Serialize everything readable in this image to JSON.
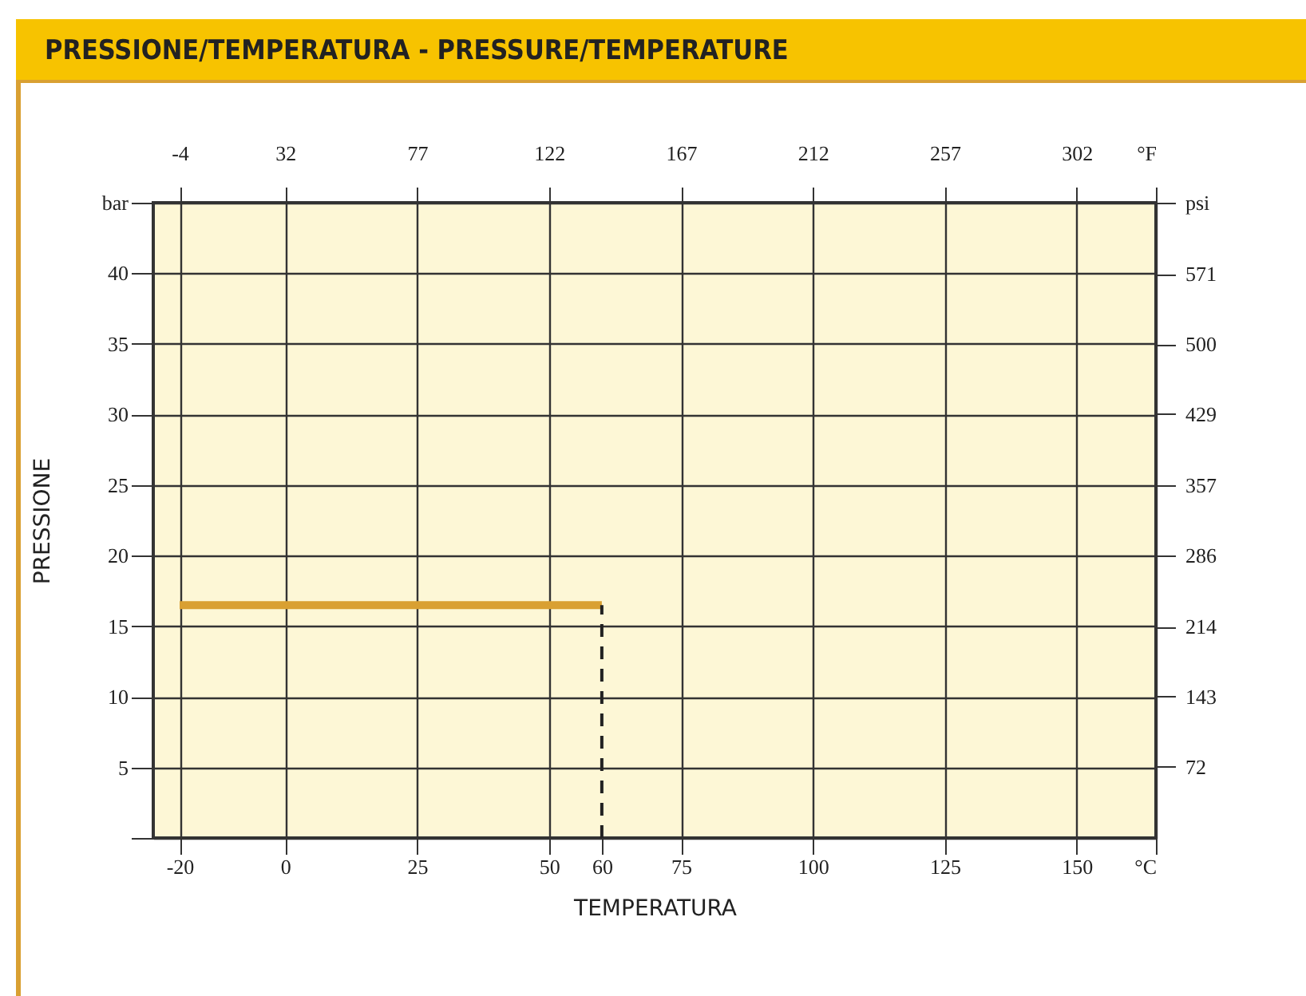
{
  "chart_data": {
    "type": "line",
    "title": "PRESSIONE/TEMPERATURA - PRESSURE/TEMPERATURE",
    "xlabel": "TEMPERATURA",
    "ylabel": "PRESSIONE",
    "x": [
      -20,
      60
    ],
    "series": [
      {
        "color": "#d9a032",
        "values": [
          16.5,
          16.5
        ]
      }
    ],
    "xlim": [
      -25,
      165
    ],
    "xticks": [
      -20,
      0,
      25,
      50,
      60,
      75,
      100,
      125,
      150,
      {
        "value": 165,
        "label": "°C"
      }
    ],
    "x2lim": [
      -13,
      329
    ],
    "x2ticks": [
      -4,
      32,
      77,
      122,
      167,
      212,
      257,
      302,
      {
        "value": 329,
        "label": "°F"
      }
    ],
    "ylim": [
      0,
      45
    ],
    "yticks": [
      {
        "value": 0,
        "label": null
      },
      5,
      10,
      15,
      20,
      25,
      30,
      35,
      40,
      {
        "value": 45,
        "label": "bar"
      }
    ],
    "y2lim": [
      0,
      643
    ],
    "y2ticks": [
      72,
      143,
      214,
      286,
      357,
      429,
      500,
      571,
      {
        "value": 643,
        "label": "psi"
      }
    ],
    "ref_lines": [
      {
        "axis": "x",
        "value": 60,
        "line_style": "dashed"
      }
    ],
    "grid": true,
    "marker": "none",
    "line_style": "solid"
  }
}
